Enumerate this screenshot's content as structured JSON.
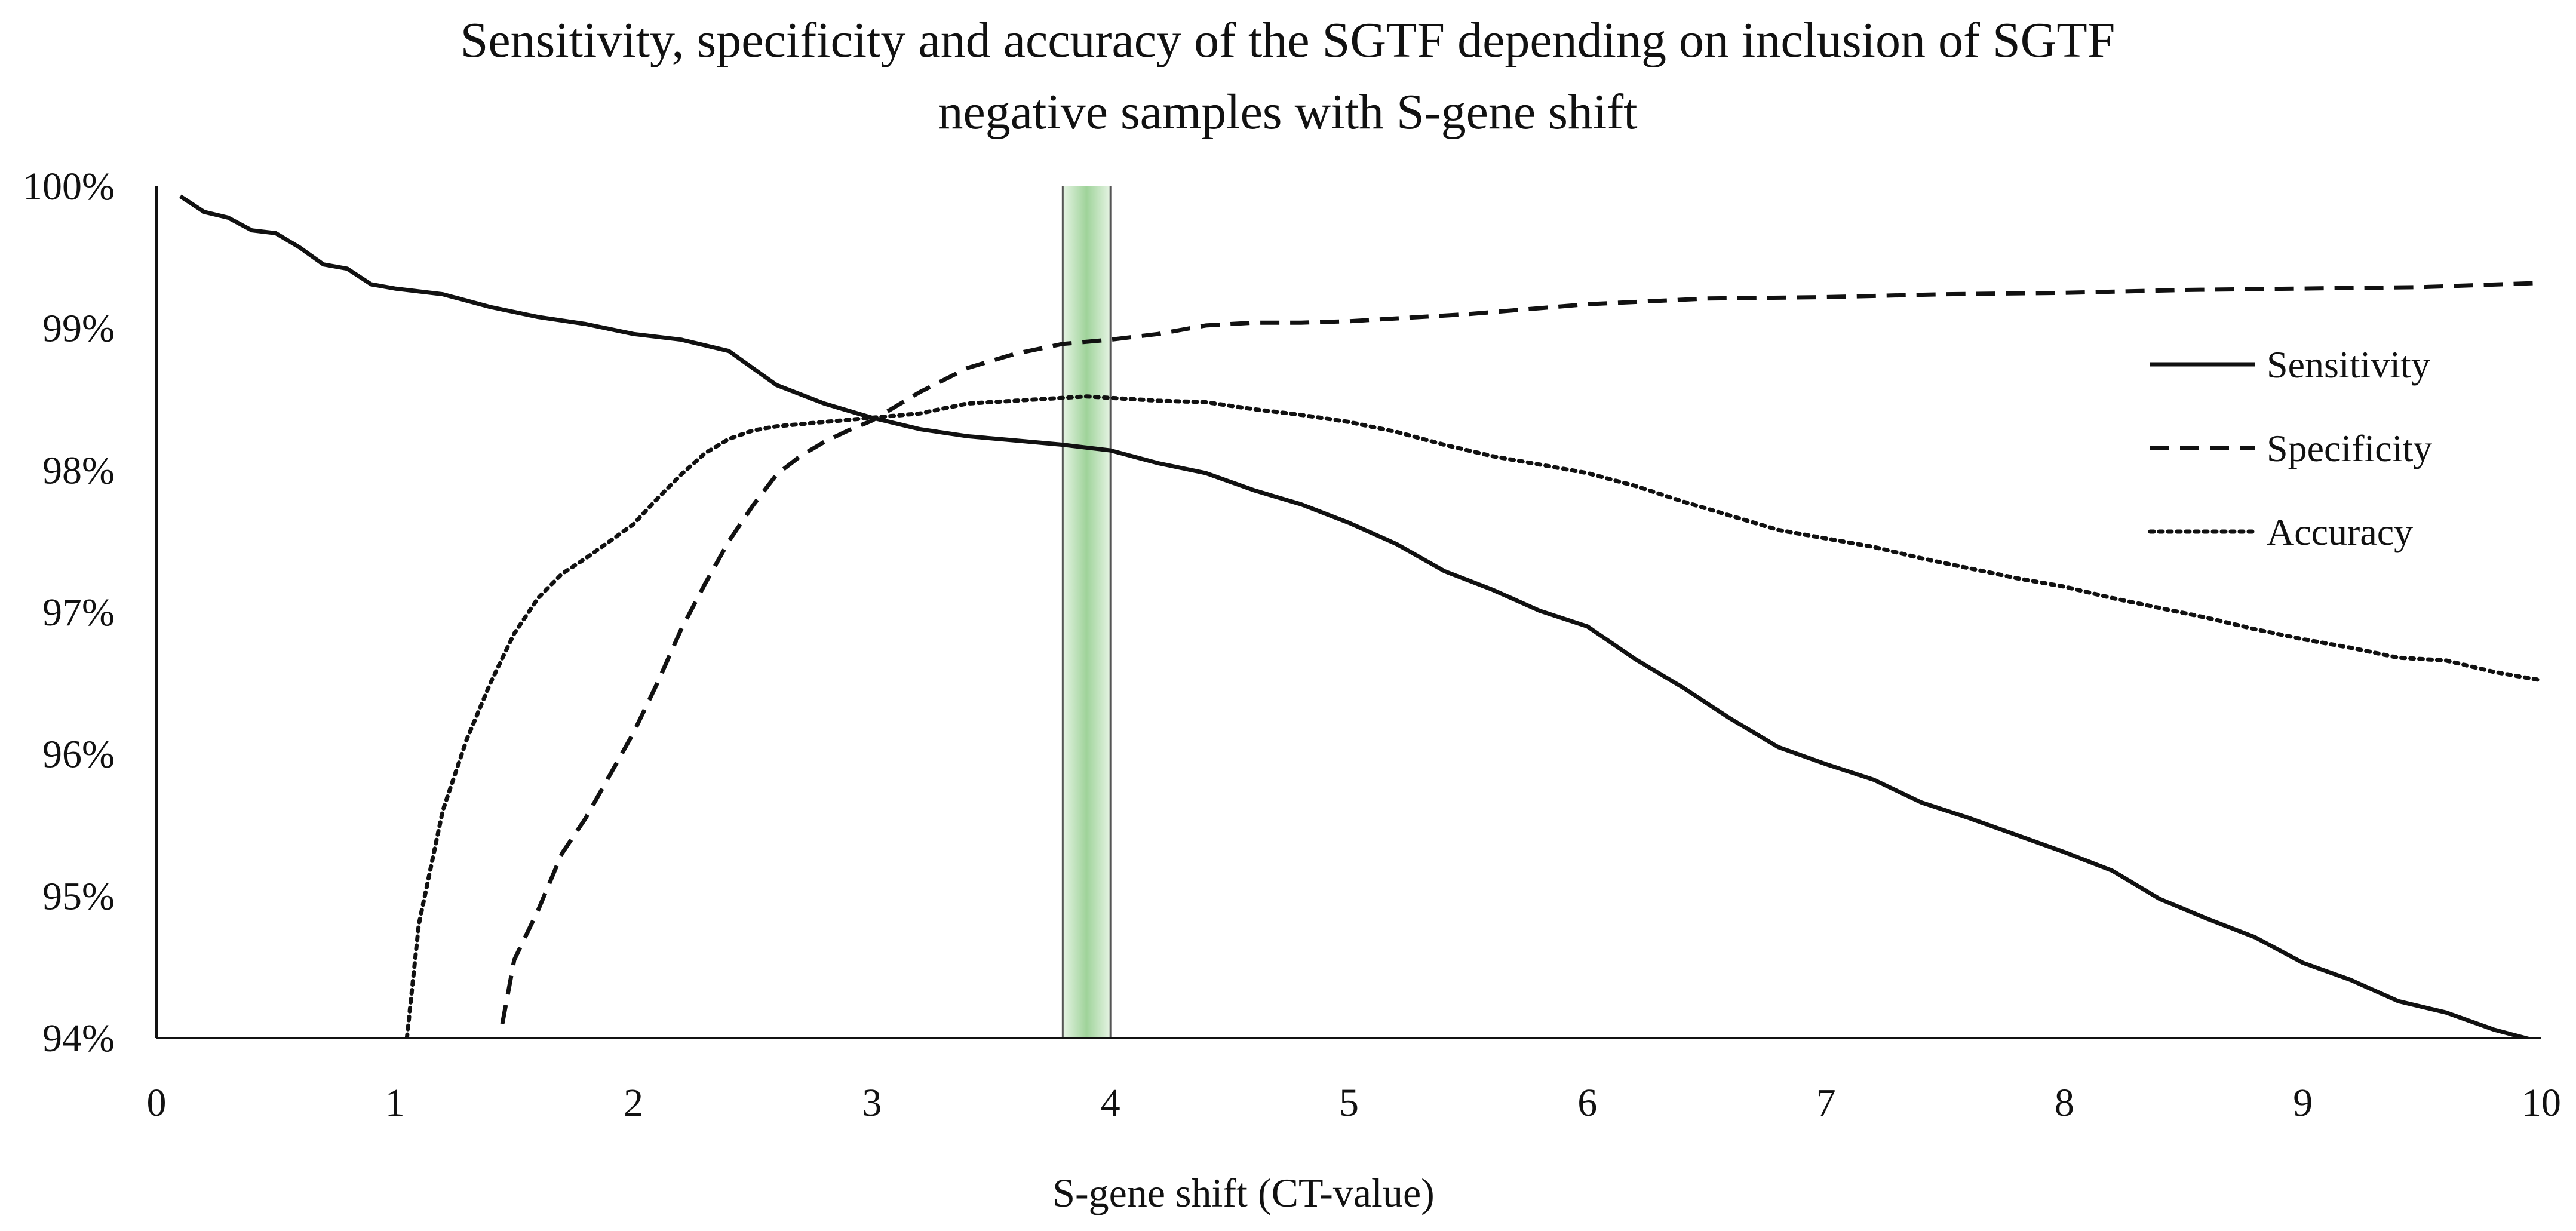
{
  "chart_data": {
    "type": "line",
    "title_lines": [
      "Sensitivity, specificity and accuracy of the SGTF depending on inclusion of SGTF",
      "negative samples with S-gene shift"
    ],
    "xlabel": "S-gene shift (CT-value)",
    "ylabel": "",
    "xlim": [
      0,
      10
    ],
    "ylim": [
      94,
      100
    ],
    "x_ticks": [
      0,
      1,
      2,
      3,
      4,
      5,
      6,
      7,
      8,
      9,
      10
    ],
    "x_tick_labels": [
      "0",
      "1",
      "2",
      "3",
      "4",
      "5",
      "6",
      "7",
      "8",
      "9",
      "10"
    ],
    "y_ticks": [
      94,
      95,
      96,
      97,
      98,
      99,
      100
    ],
    "y_tick_labels": [
      "94%",
      "95%",
      "96%",
      "97%",
      "98%",
      "99%",
      "100%"
    ],
    "grid": false,
    "legend_position": "right",
    "highlight_band": {
      "x_start": 3.8,
      "x_end": 4.0,
      "color": "#9fd39a"
    },
    "series": [
      {
        "name": "Sensitivity",
        "style": "solid",
        "x": [
          0.1,
          0.2,
          0.3,
          0.4,
          0.5,
          0.6,
          0.7,
          0.8,
          0.9,
          1.0,
          1.2,
          1.4,
          1.6,
          1.8,
          2.0,
          2.2,
          2.4,
          2.6,
          2.8,
          3.0,
          3.2,
          3.4,
          3.6,
          3.8,
          4.0,
          4.2,
          4.4,
          4.6,
          4.8,
          5.0,
          5.2,
          5.4,
          5.6,
          5.8,
          6.0,
          6.2,
          6.4,
          6.6,
          6.8,
          7.0,
          7.2,
          7.4,
          7.6,
          7.8,
          8.0,
          8.2,
          8.4,
          8.6,
          8.8,
          9.0,
          9.2,
          9.4,
          9.6,
          9.8,
          10.0
        ],
        "values": [
          99.93,
          99.82,
          99.78,
          99.69,
          99.67,
          99.57,
          99.45,
          99.42,
          99.31,
          99.28,
          99.24,
          99.15,
          99.08,
          99.03,
          98.96,
          98.92,
          98.84,
          98.6,
          98.47,
          98.37,
          98.29,
          98.24,
          98.21,
          98.18,
          98.14,
          98.05,
          97.98,
          97.86,
          97.76,
          97.63,
          97.48,
          97.29,
          97.16,
          97.01,
          96.9,
          96.67,
          96.47,
          96.25,
          96.05,
          95.93,
          95.82,
          95.66,
          95.55,
          95.43,
          95.31,
          95.18,
          94.98,
          94.84,
          94.71,
          94.53,
          94.41,
          94.26,
          94.18,
          94.06,
          93.97
        ]
      },
      {
        "name": "Specificity",
        "style": "dashed",
        "x": [
          1.45,
          1.5,
          1.6,
          1.7,
          1.8,
          1.9,
          2.0,
          2.1,
          2.2,
          2.3,
          2.4,
          2.5,
          2.6,
          2.7,
          2.8,
          2.9,
          3.0,
          3.2,
          3.4,
          3.6,
          3.8,
          4.0,
          4.2,
          4.4,
          4.6,
          4.8,
          5.0,
          5.5,
          6.0,
          6.5,
          7.0,
          7.5,
          8.0,
          8.5,
          9.0,
          9.5,
          10.0
        ],
        "values": [
          94.1,
          94.55,
          94.9,
          95.3,
          95.55,
          95.85,
          96.15,
          96.5,
          96.88,
          97.2,
          97.5,
          97.75,
          97.97,
          98.1,
          98.2,
          98.28,
          98.35,
          98.55,
          98.72,
          98.82,
          98.89,
          98.92,
          98.96,
          99.02,
          99.04,
          99.04,
          99.05,
          99.1,
          99.17,
          99.21,
          99.22,
          99.24,
          99.25,
          99.27,
          99.28,
          99.29,
          99.32
        ]
      },
      {
        "name": "Accuracy",
        "style": "dotted",
        "x": [
          1.05,
          1.1,
          1.2,
          1.3,
          1.4,
          1.5,
          1.6,
          1.7,
          1.8,
          1.9,
          2.0,
          2.1,
          2.2,
          2.3,
          2.4,
          2.5,
          2.6,
          2.8,
          3.0,
          3.2,
          3.4,
          3.6,
          3.8,
          3.9,
          4.0,
          4.2,
          4.4,
          4.6,
          4.8,
          5.0,
          5.2,
          5.4,
          5.6,
          5.8,
          6.0,
          6.2,
          6.4,
          6.6,
          6.8,
          7.0,
          7.2,
          7.4,
          7.6,
          7.8,
          8.0,
          8.2,
          8.4,
          8.6,
          8.8,
          9.0,
          9.2,
          9.4,
          9.6,
          9.8,
          10.0
        ],
        "values": [
          94.0,
          94.8,
          95.6,
          96.1,
          96.5,
          96.85,
          97.1,
          97.27,
          97.38,
          97.5,
          97.62,
          97.8,
          97.97,
          98.12,
          98.22,
          98.28,
          98.31,
          98.34,
          98.37,
          98.4,
          98.47,
          98.49,
          98.51,
          98.52,
          98.51,
          98.49,
          98.48,
          98.43,
          98.39,
          98.34,
          98.27,
          98.18,
          98.1,
          98.04,
          97.98,
          97.89,
          97.78,
          97.68,
          97.58,
          97.52,
          97.46,
          97.38,
          97.31,
          97.24,
          97.18,
          97.1,
          97.03,
          96.96,
          96.88,
          96.81,
          96.75,
          96.68,
          96.66,
          96.58,
          96.52
        ]
      }
    ]
  }
}
